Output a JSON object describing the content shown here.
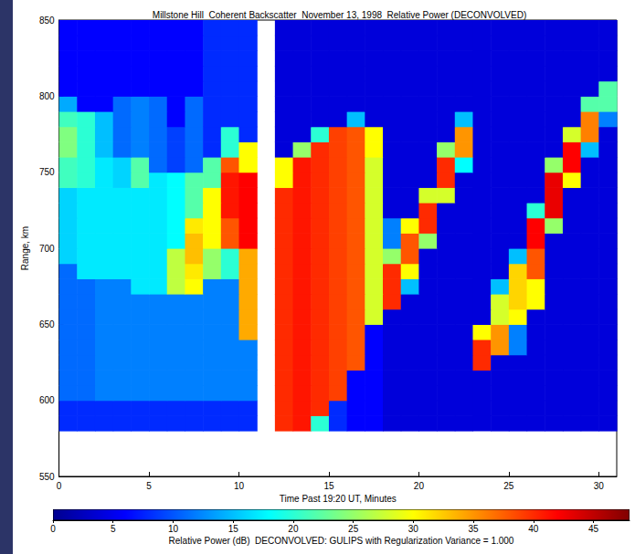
{
  "chart_data": {
    "type": "heatmap",
    "title": "Millstone Hill  Coherent Backscatter  November 13, 1998  Relative Power (DECONVOLVED)",
    "x_label": "Time Past 19:20 UT, Minutes",
    "y_label": "Range, km",
    "xlim": [
      0,
      31
    ],
    "xticks": [
      0,
      5,
      10,
      15,
      20,
      25,
      30
    ],
    "ylim": [
      550,
      850
    ],
    "yticks": [
      550,
      600,
      650,
      700,
      750,
      800,
      850
    ],
    "grid": false,
    "color": "jet",
    "x_edges": [
      0,
      1,
      2,
      3,
      4,
      5,
      6,
      7,
      8,
      9,
      10,
      11,
      12,
      13,
      14,
      15,
      16,
      17,
      18,
      19,
      20,
      21,
      22,
      23,
      24,
      25,
      26,
      27,
      28,
      29,
      30,
      31
    ],
    "y_edges": [
      580,
      590,
      600,
      610,
      620,
      630,
      640,
      650,
      660,
      670,
      680,
      690,
      700,
      710,
      720,
      730,
      740,
      750,
      760,
      770,
      780,
      790,
      800,
      810,
      820,
      830,
      840,
      850
    ],
    "z": [
      [
        8,
        8,
        8,
        8,
        8,
        8,
        8,
        8,
        8,
        8,
        8,
        null,
        40,
        41,
        20,
        8,
        6,
        6,
        4,
        4,
        4,
        4,
        4,
        4,
        4,
        4,
        4,
        4,
        4,
        4,
        4
      ],
      [
        8,
        8,
        8,
        8,
        8,
        8,
        8,
        8,
        8,
        8,
        8,
        null,
        40,
        41,
        40,
        8,
        6,
        6,
        4,
        4,
        4,
        4,
        4,
        4,
        4,
        4,
        4,
        4,
        4,
        4,
        4
      ],
      [
        11,
        11,
        12,
        12,
        12,
        12,
        12,
        12,
        12,
        12,
        12,
        null,
        40,
        41,
        40,
        39,
        6,
        6,
        4,
        4,
        4,
        4,
        4,
        4,
        4,
        4,
        4,
        4,
        4,
        4,
        4
      ],
      [
        11,
        11,
        12,
        12,
        12,
        12,
        12,
        12,
        12,
        12,
        12,
        null,
        40,
        41,
        40,
        39,
        6,
        6,
        4,
        4,
        4,
        4,
        4,
        4,
        4,
        4,
        4,
        4,
        4,
        4,
        4
      ],
      [
        11,
        11,
        12,
        12,
        12,
        12,
        12,
        12,
        12,
        12,
        12,
        null,
        40,
        41,
        40,
        39,
        38,
        6,
        4,
        4,
        4,
        4,
        4,
        40,
        4,
        4,
        4,
        4,
        4,
        4,
        4
      ],
      [
        11,
        11,
        12,
        12,
        12,
        12,
        12,
        12,
        12,
        12,
        12,
        null,
        40,
        41,
        40,
        39,
        38,
        6,
        4,
        4,
        4,
        4,
        4,
        40,
        35,
        12,
        4,
        4,
        4,
        4,
        4
      ],
      [
        11,
        11,
        12,
        12,
        12,
        12,
        12,
        12,
        12,
        12,
        34,
        null,
        40,
        41,
        40,
        39,
        38,
        6,
        4,
        4,
        4,
        4,
        4,
        30,
        35,
        12,
        4,
        4,
        4,
        4,
        4
      ],
      [
        11,
        11,
        12,
        12,
        12,
        12,
        12,
        12,
        12,
        12,
        34,
        null,
        40,
        41,
        40,
        39,
        38,
        28,
        4,
        4,
        4,
        4,
        4,
        4,
        28,
        30,
        4,
        4,
        4,
        4,
        4
      ],
      [
        11,
        11,
        12,
        12,
        12,
        12,
        12,
        12,
        12,
        12,
        34,
        null,
        40,
        41,
        40,
        39,
        38,
        28,
        40,
        4,
        4,
        4,
        4,
        4,
        28,
        32,
        30,
        4,
        4,
        4,
        4
      ],
      [
        11,
        11,
        12,
        12,
        17,
        17,
        27,
        30,
        12,
        12,
        34,
        null,
        40,
        41,
        40,
        39,
        38,
        28,
        40,
        15,
        4,
        4,
        4,
        4,
        15,
        32,
        30,
        4,
        4,
        4,
        4
      ],
      [
        11,
        17,
        17,
        17,
        17,
        17,
        27,
        31,
        25,
        20,
        34,
        null,
        40,
        41,
        40,
        39,
        38,
        28,
        40,
        30,
        4,
        4,
        4,
        4,
        4,
        32,
        38,
        4,
        4,
        4,
        4
      ],
      [
        16,
        17,
        17,
        17,
        17,
        17,
        27,
        33,
        25,
        20,
        34,
        null,
        40,
        41,
        40,
        39,
        38,
        28,
        25,
        38,
        4,
        4,
        4,
        4,
        4,
        15,
        38,
        4,
        4,
        4,
        4
      ],
      [
        16,
        17,
        17,
        17,
        17,
        17,
        18,
        33,
        30,
        38,
        42,
        null,
        40,
        41,
        40,
        39,
        38,
        28,
        12,
        38,
        25,
        4,
        4,
        4,
        4,
        4,
        42,
        4,
        4,
        4,
        4
      ],
      [
        16,
        17,
        17,
        17,
        17,
        17,
        18,
        31,
        30,
        38,
        42,
        null,
        40,
        41,
        40,
        39,
        38,
        28,
        12,
        30,
        40,
        4,
        4,
        4,
        4,
        4,
        42,
        25,
        4,
        4,
        4
      ],
      [
        16,
        17,
        17,
        17,
        17,
        17,
        18,
        22,
        30,
        41,
        42,
        null,
        40,
        41,
        40,
        39,
        38,
        28,
        4,
        4,
        40,
        4,
        4,
        4,
        4,
        4,
        20,
        43,
        4,
        4,
        4
      ],
      [
        16,
        17,
        17,
        17,
        17,
        17,
        18,
        22,
        30,
        41,
        42,
        null,
        40,
        41,
        40,
        39,
        38,
        28,
        4,
        4,
        28,
        28,
        4,
        4,
        4,
        4,
        4,
        43,
        4,
        4,
        4
      ],
      [
        21,
        20,
        17,
        16,
        22,
        17,
        18,
        22,
        22,
        41,
        42,
        null,
        30,
        41,
        40,
        39,
        38,
        28,
        4,
        4,
        4,
        40,
        4,
        4,
        4,
        4,
        4,
        43,
        30,
        4,
        4
      ],
      [
        21,
        20,
        17,
        16,
        22,
        11,
        9,
        11,
        22,
        38,
        30,
        null,
        30,
        41,
        40,
        39,
        38,
        28,
        4,
        4,
        4,
        40,
        18,
        4,
        4,
        4,
        4,
        25,
        42,
        4,
        4
      ],
      [
        24,
        20,
        15,
        11,
        12,
        11,
        9,
        11,
        8,
        20,
        30,
        null,
        4,
        25,
        40,
        39,
        38,
        30,
        4,
        4,
        4,
        25,
        35,
        4,
        4,
        4,
        4,
        4,
        42,
        15,
        4
      ],
      [
        24,
        20,
        15,
        11,
        12,
        11,
        9,
        11,
        8,
        20,
        8,
        null,
        4,
        4,
        20,
        39,
        38,
        30,
        4,
        4,
        4,
        4,
        35,
        4,
        4,
        4,
        4,
        4,
        28,
        36,
        4
      ],
      [
        21,
        20,
        15,
        11,
        12,
        11,
        6,
        11,
        8,
        8,
        8,
        null,
        4,
        4,
        4,
        4,
        15,
        4,
        4,
        4,
        4,
        4,
        15,
        4,
        4,
        4,
        4,
        4,
        4,
        36,
        12
      ],
      [
        14,
        6,
        6,
        11,
        12,
        11,
        6,
        11,
        8,
        8,
        8,
        null,
        4,
        4,
        4,
        4,
        4,
        4,
        4,
        4,
        4,
        4,
        4,
        4,
        4,
        4,
        4,
        4,
        4,
        22,
        22
      ],
      [
        6,
        6,
        6,
        6,
        6,
        6,
        6,
        6,
        8,
        8,
        8,
        null,
        4,
        4,
        4,
        4,
        4,
        4,
        4,
        4,
        4,
        4,
        4,
        4,
        4,
        4,
        4,
        4,
        4,
        4,
        22
      ],
      [
        6,
        6,
        6,
        6,
        6,
        6,
        6,
        6,
        8,
        8,
        8,
        null,
        4,
        4,
        4,
        4,
        4,
        4,
        4,
        4,
        4,
        4,
        4,
        4,
        4,
        4,
        4,
        4,
        4,
        4,
        4
      ],
      [
        6,
        6,
        6,
        6,
        6,
        6,
        6,
        6,
        8,
        8,
        8,
        null,
        4,
        4,
        4,
        4,
        4,
        4,
        4,
        4,
        4,
        4,
        4,
        4,
        4,
        4,
        4,
        4,
        4,
        4,
        4
      ],
      [
        6,
        6,
        6,
        6,
        6,
        6,
        6,
        6,
        8,
        8,
        8,
        null,
        4,
        4,
        4,
        4,
        4,
        4,
        4,
        4,
        4,
        4,
        4,
        4,
        4,
        4,
        4,
        4,
        4,
        4,
        4
      ],
      [
        6,
        6,
        6,
        6,
        6,
        6,
        6,
        6,
        8,
        8,
        8,
        null,
        4,
        4,
        4,
        4,
        4,
        4,
        4,
        4,
        4,
        4,
        4,
        4,
        4,
        4,
        4,
        4,
        4,
        4,
        4
      ]
    ],
    "colorbar": {
      "label": "Relative Power (dB)  DECONVOLVED: GULIPS with Regularization Variance = 1.000",
      "range": [
        0,
        48
      ],
      "ticks": [
        0,
        5,
        10,
        15,
        20,
        25,
        30,
        35,
        40,
        45
      ]
    }
  }
}
